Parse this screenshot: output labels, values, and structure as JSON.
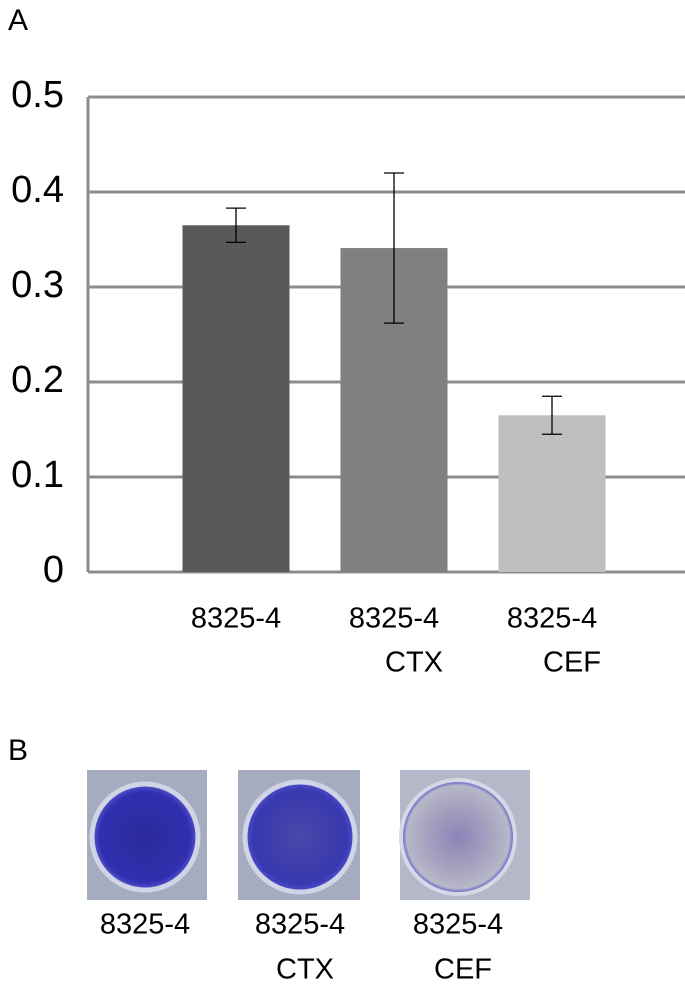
{
  "panels": {
    "a": "A",
    "b": "B"
  },
  "chart_data": {
    "type": "bar",
    "categories": [
      [
        "8325-4"
      ],
      [
        "8325-4",
        "CTX"
      ],
      [
        "8325-4",
        "CEF"
      ]
    ],
    "values": [
      0.365,
      0.341,
      0.165
    ],
    "errors": [
      0.018,
      0.079,
      0.02
    ],
    "colors": [
      "#595959",
      "#808080",
      "#bfbfbf"
    ],
    "ylim": [
      0,
      0.5
    ],
    "yticks": [
      0,
      0.1,
      0.2,
      0.3,
      0.4,
      0.5
    ],
    "grid": true
  },
  "wells": [
    [
      "8325-4"
    ],
    [
      "8325-4",
      "CTX"
    ],
    [
      "8325-4",
      "CEF"
    ]
  ]
}
